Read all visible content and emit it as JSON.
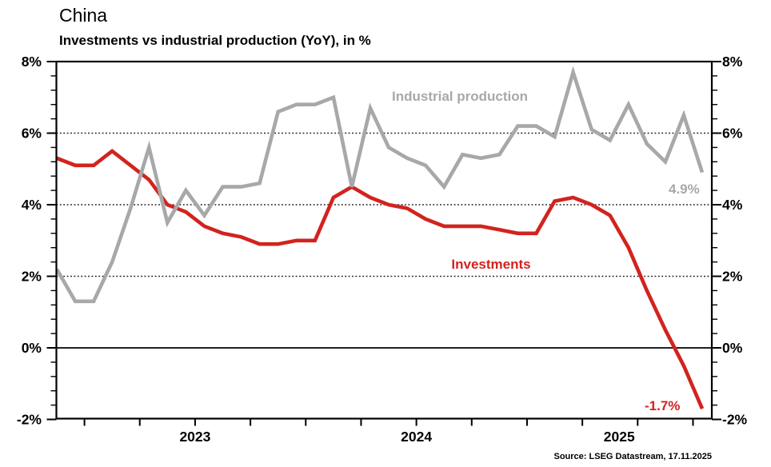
{
  "header": {
    "title": "China",
    "subtitle": "Investments vs industrial production (YoY), in %"
  },
  "source": "Source: LSEG Datastream, 17.11.2025",
  "colors": {
    "investments_red": "#d2231e",
    "industrial_gray": "#a8a8a8",
    "axis_black": "#000000",
    "grid_dotted": "#1a1a1a"
  },
  "chart_data": {
    "type": "line",
    "title": "China",
    "subtitle": "Investments vs industrial production (YoY), in %",
    "x_unit": "month",
    "x": [
      "2022-11",
      "2022-12",
      "2023-01",
      "2023-02",
      "2023-03",
      "2023-04",
      "2023-05",
      "2023-06",
      "2023-07",
      "2023-08",
      "2023-09",
      "2023-10",
      "2023-11",
      "2023-12",
      "2024-01",
      "2024-02",
      "2024-03",
      "2024-04",
      "2024-05",
      "2024-06",
      "2024-07",
      "2024-08",
      "2024-09",
      "2024-10",
      "2024-11",
      "2024-12",
      "2025-01",
      "2025-02",
      "2025-03",
      "2025-04",
      "2025-05",
      "2025-06",
      "2025-07",
      "2025-08",
      "2025-09",
      "2025-10"
    ],
    "series": [
      {
        "name": "Industrial production",
        "color": "#a8a8a8",
        "values": [
          2.2,
          1.3,
          1.3,
          2.4,
          3.9,
          5.6,
          3.5,
          4.4,
          3.7,
          4.5,
          4.5,
          4.6,
          6.6,
          6.8,
          6.8,
          7.0,
          4.5,
          6.7,
          5.6,
          5.3,
          5.1,
          4.5,
          5.4,
          5.3,
          5.4,
          6.2,
          6.2,
          5.9,
          7.7,
          6.1,
          5.8,
          6.8,
          5.7,
          5.2,
          6.5,
          4.9
        ]
      },
      {
        "name": "Investments",
        "color": "#d2231e",
        "values": [
          5.3,
          5.1,
          5.1,
          5.5,
          5.1,
          4.7,
          4.0,
          3.8,
          3.4,
          3.2,
          3.1,
          2.9,
          2.9,
          3.0,
          3.0,
          4.2,
          4.5,
          4.2,
          4.0,
          3.9,
          3.6,
          3.4,
          3.4,
          3.4,
          3.3,
          3.2,
          3.2,
          4.1,
          4.2,
          4.0,
          3.7,
          2.8,
          1.6,
          0.5,
          -0.5,
          -1.7
        ]
      }
    ],
    "end_labels": [
      {
        "text": "4.9%",
        "series": "Industrial production",
        "color": "#a8a8a8"
      },
      {
        "text": "-1.7%",
        "series": "Investments",
        "color": "#d2231e"
      }
    ],
    "ylim": [
      -2,
      8
    ],
    "yticks": [
      8,
      6,
      4,
      2,
      0,
      -2
    ],
    "ytick_labels": [
      "8%",
      "6%",
      "4%",
      "2%",
      "0%",
      "-2%"
    ],
    "ytick_minor_step": 0.4,
    "grid_dotted_at": [
      2,
      4,
      6
    ],
    "zero_line_at": 0,
    "x_tick_interval": "quarterly",
    "x_year_labels": [
      "2023",
      "2024",
      "2025"
    ],
    "legend_position": "inline-labels",
    "grid": "horizontal-dotted"
  }
}
